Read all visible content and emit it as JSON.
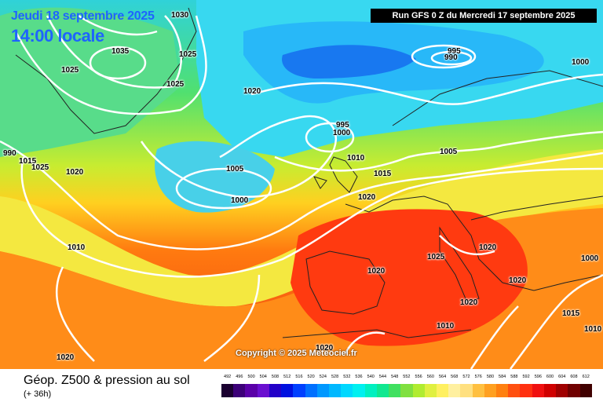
{
  "header": {
    "date": "Jeudi 18 septembre 2025",
    "local_time": "14:00 locale",
    "run_info": "Run GFS 0 Z du Mercredi 17 septembre 2025"
  },
  "map": {
    "copyright": "Copyright © 2025 Meteociel.fr",
    "isobar_labels": [
      "1030",
      "1035",
      "1025",
      "1025",
      "1020",
      "1025",
      "990",
      "995",
      "1000",
      "1010",
      "1015",
      "1020",
      "1005",
      "1000",
      "995",
      "990",
      "1000",
      "1010",
      "1015",
      "1020",
      "1025",
      "1025",
      "1020",
      "1020",
      "1020",
      "1020",
      "1010",
      "1015",
      "1000",
      "1005",
      "1010",
      "1020",
      "1020"
    ]
  },
  "footer": {
    "caption": "Géop. Z500 & pression au sol",
    "lead_time": "(+ 36h)",
    "scale_ticks": [
      "492",
      "496",
      "500",
      "504",
      "508",
      "512",
      "516",
      "520",
      "524",
      "528",
      "532",
      "536",
      "540",
      "544",
      "548",
      "552",
      "556",
      "560",
      "564",
      "568",
      "572",
      "576",
      "580",
      "584",
      "588",
      "592",
      "596",
      "600",
      "604",
      "608",
      "612"
    ],
    "scale_colors": [
      "#1a0030",
      "#3c0078",
      "#5a00a8",
      "#6a0fd0",
      "#2200c8",
      "#0010e0",
      "#0040ff",
      "#0070ff",
      "#0098ff",
      "#00b8ff",
      "#00d8ff",
      "#00f0f0",
      "#00f0c0",
      "#10e890",
      "#40e060",
      "#80e040",
      "#b0ec30",
      "#e0f040",
      "#fff060",
      "#fff0a0",
      "#ffe080",
      "#ffc040",
      "#ffa020",
      "#ff8010",
      "#ff5010",
      "#ff3010",
      "#f01010",
      "#d00000",
      "#a00000",
      "#700000",
      "#400000"
    ]
  },
  "colors": {
    "title_blue": "#1e64ff"
  }
}
